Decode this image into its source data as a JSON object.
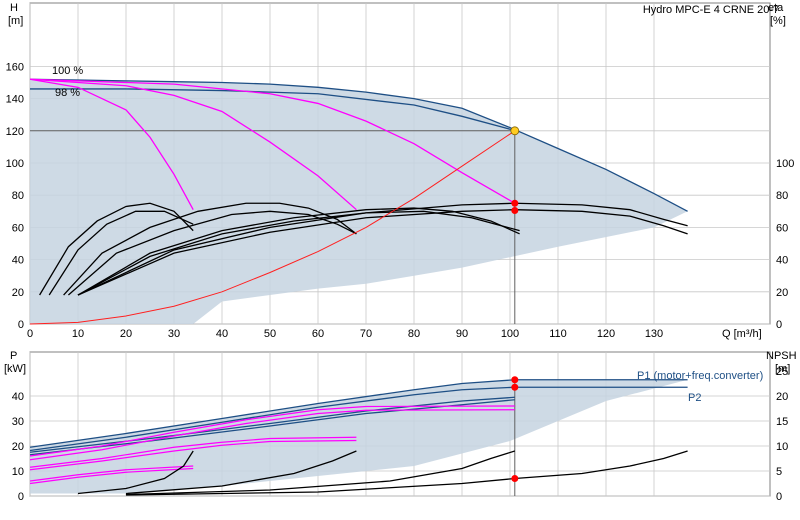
{
  "chart_data": [
    {
      "type": "line",
      "title": "Hydro MPC-E 4 CRNE 20-7",
      "ylabel_left": "H",
      "ylabel_left_unit": "[m]",
      "ylabel_right": "eta",
      "ylabel_right_unit": "[%]",
      "xlabel": "Q [m³/h]",
      "xlim": [
        0,
        140
      ],
      "ylim": [
        0,
        170
      ],
      "eta_ylim": [
        0,
        170
      ],
      "x_ticks": [
        0,
        10,
        20,
        30,
        40,
        50,
        60,
        70,
        80,
        90,
        100,
        110,
        120,
        130
      ],
      "y_ticks": [
        0,
        20,
        40,
        60,
        80,
        100,
        120,
        140,
        160
      ],
      "eta_ticks": [
        0,
        20,
        40,
        60,
        80,
        100
      ],
      "grid": true,
      "speed_labels": [
        "100 %",
        "98 %"
      ],
      "colors": {
        "envelope_fill": "#c6d4e1",
        "envelope_line": "#1e4f85",
        "qh": "#ff00ff",
        "system": "#ff2020",
        "eff": "#000000",
        "grid": "#c8c8c8",
        "refline": "#606060",
        "dutypoint": "#ffcc22"
      },
      "envelope": {
        "q": [
          0,
          10,
          20,
          30,
          40,
          50,
          60,
          70,
          80,
          90,
          100,
          110,
          120,
          130,
          137
        ],
        "h": [
          152,
          151.5,
          151,
          150.5,
          150,
          149,
          147,
          144,
          140,
          134,
          122,
          109,
          96,
          81,
          70
        ]
      },
      "series": [
        {
          "name": "100 %",
          "q": [
            0,
            10,
            20,
            30,
            40,
            50,
            60,
            70,
            80,
            90,
            100,
            110,
            120,
            130,
            137
          ],
          "h": [
            152,
            151.5,
            151,
            150.5,
            150,
            149,
            147,
            144,
            140,
            134,
            122,
            109,
            96,
            81,
            70
          ]
        },
        {
          "name": "98 %",
          "q": [
            0,
            20,
            40,
            60,
            80,
            90,
            100,
            101
          ],
          "h": [
            146,
            146,
            145,
            143,
            136,
            129,
            121,
            120
          ]
        },
        {
          "q": [
            0,
            10,
            20,
            25,
            30,
            34
          ],
          "h": [
            152,
            147,
            133,
            116,
            93,
            71
          ]
        },
        {
          "q": [
            0,
            20,
            30,
            40,
            50,
            60,
            68
          ],
          "h": [
            152,
            148,
            142,
            132,
            113,
            92,
            71
          ]
        },
        {
          "q": [
            0,
            30,
            50,
            60,
            70,
            80,
            90,
            101
          ],
          "h": [
            152,
            149,
            143,
            137,
            126,
            112,
            94,
            75
          ]
        }
      ],
      "efficiency_curves": [
        {
          "q": [
            2,
            8,
            14,
            20,
            25,
            30,
            34
          ],
          "eta": [
            18,
            48,
            64,
            73,
            75,
            70,
            58
          ]
        },
        {
          "q": [
            4,
            10,
            16,
            22,
            28,
            34
          ],
          "eta": [
            18,
            46,
            62,
            70,
            70,
            62
          ]
        },
        {
          "q": [
            7,
            15,
            25,
            35,
            45,
            52,
            58,
            64,
            68
          ],
          "eta": [
            18,
            44,
            60,
            70,
            75,
            75,
            72,
            65,
            56
          ]
        },
        {
          "q": [
            8,
            18,
            30,
            42,
            50,
            58,
            64,
            68
          ],
          "eta": [
            18,
            44,
            58,
            68,
            70,
            68,
            62,
            56
          ]
        },
        {
          "q": [
            10,
            25,
            40,
            55,
            70,
            80,
            88,
            96,
            102
          ],
          "eta": [
            18,
            44,
            58,
            66,
            71,
            72,
            70,
            64,
            56
          ]
        },
        {
          "q": [
            10,
            25,
            40,
            55,
            70,
            82,
            92,
            102
          ],
          "eta": [
            18,
            42,
            56,
            64,
            69,
            70,
            66,
            58
          ]
        },
        {
          "q": [
            10,
            30,
            50,
            70,
            90,
            101,
            115,
            125,
            132,
            137
          ],
          "eta": [
            18,
            46,
            60,
            69,
            74,
            75,
            74,
            71,
            65,
            61
          ]
        },
        {
          "q": [
            10,
            30,
            50,
            70,
            90,
            101,
            115,
            125,
            132,
            137
          ],
          "eta": [
            18,
            44,
            57,
            66,
            70,
            71,
            70,
            67,
            61,
            56
          ]
        }
      ],
      "system_curve": {
        "q": [
          0,
          10,
          20,
          30,
          40,
          50,
          60,
          70,
          80,
          90,
          101
        ],
        "h": [
          0,
          1,
          5,
          11,
          20,
          32,
          45,
          60,
          78,
          98,
          120
        ]
      },
      "duty_point": {
        "q": 101,
        "h": 120
      },
      "marker_points": [
        {
          "q": 101,
          "h": 75
        },
        {
          "q": 101,
          "h": 70.5
        }
      ]
    },
    {
      "type": "line",
      "ylabel_left": "P",
      "ylabel_left_unit": "[kW]",
      "ylabel_right": "NPSH",
      "ylabel_right_unit": "[m]",
      "xlim": [
        0,
        140
      ],
      "ylim": [
        0,
        49
      ],
      "npsh_ylim": [
        0,
        29.4
      ],
      "y_ticks": [
        0,
        10,
        20,
        30,
        40
      ],
      "npsh_ticks": [
        0,
        5,
        10,
        15,
        20,
        25
      ],
      "grid": true,
      "power_labels": [
        "P1 (motor+freq.converter)",
        "P2"
      ],
      "power_envelope": {
        "q": [
          0,
          20,
          40,
          60,
          80,
          90,
          101,
          137
        ],
        "p": [
          19.5,
          25,
          31,
          37,
          42.5,
          45,
          46.5,
          46.5
        ]
      },
      "power_curves": [
        {
          "q": [
            0,
            20,
            40,
            60,
            80,
            90,
            101,
            137
          ],
          "p": [
            19.5,
            25,
            31,
            37,
            42.5,
            45,
            46.5,
            46.5
          ]
        },
        {
          "q": [
            0,
            20,
            40,
            60,
            80,
            90,
            101,
            137
          ],
          "p": [
            18.2,
            23.5,
            29.5,
            35.5,
            40.5,
            42.5,
            43.5,
            43.5
          ]
        },
        {
          "q": [
            0,
            25,
            50,
            70,
            90,
            101
          ],
          "p": [
            17.5,
            23,
            29,
            34,
            38,
            39.5
          ]
        },
        {
          "q": [
            0,
            25,
            50,
            70,
            90,
            101
          ],
          "p": [
            16.5,
            22,
            28,
            33,
            36.5,
            38.5
          ]
        }
      ],
      "pink_curves": [
        {
          "q": [
            0,
            15,
            30,
            45,
            60,
            70,
            101
          ],
          "p": [
            16,
            20,
            25.5,
            30.5,
            34.5,
            35.8,
            36
          ]
        },
        {
          "q": [
            0,
            15,
            30,
            45,
            60,
            70,
            101
          ],
          "p": [
            14.5,
            18.5,
            24,
            29,
            33,
            34.3,
            34.5
          ]
        },
        {
          "q": [
            0,
            15,
            30,
            40,
            50,
            68
          ],
          "p": [
            11.5,
            15,
            19.5,
            21.5,
            23,
            23.5
          ]
        },
        {
          "q": [
            0,
            15,
            30,
            40,
            50,
            68
          ],
          "p": [
            10.5,
            14,
            18,
            20.3,
            21.8,
            22.2
          ]
        },
        {
          "q": [
            0,
            10,
            20,
            34
          ],
          "p": [
            6,
            8.5,
            10.5,
            12
          ]
        },
        {
          "q": [
            0,
            10,
            20,
            34
          ],
          "p": [
            5,
            7.5,
            9.5,
            11
          ]
        }
      ],
      "npsh_curves": [
        {
          "q": [
            10,
            20,
            28,
            32,
            34
          ],
          "npsh": [
            0.5,
            1.5,
            3.5,
            6,
            9
          ]
        },
        {
          "q": [
            20,
            40,
            55,
            63,
            68
          ],
          "npsh": [
            0.5,
            2,
            4.5,
            7,
            9
          ]
        },
        {
          "q": [
            20,
            50,
            75,
            90,
            96,
            101
          ],
          "npsh": [
            0.3,
            1.2,
            3,
            5.5,
            7.5,
            9
          ]
        },
        {
          "q": [
            20,
            60,
            90,
            101,
            115,
            125,
            132,
            137
          ],
          "npsh": [
            0.2,
            0.8,
            2.5,
            3.5,
            4.5,
            6,
            7.5,
            9
          ]
        }
      ],
      "marker_points": [
        {
          "q": 101,
          "p": 46.5
        },
        {
          "q": 101,
          "p": 43.5
        },
        {
          "q": 101,
          "npsh": 3.5
        }
      ]
    }
  ]
}
